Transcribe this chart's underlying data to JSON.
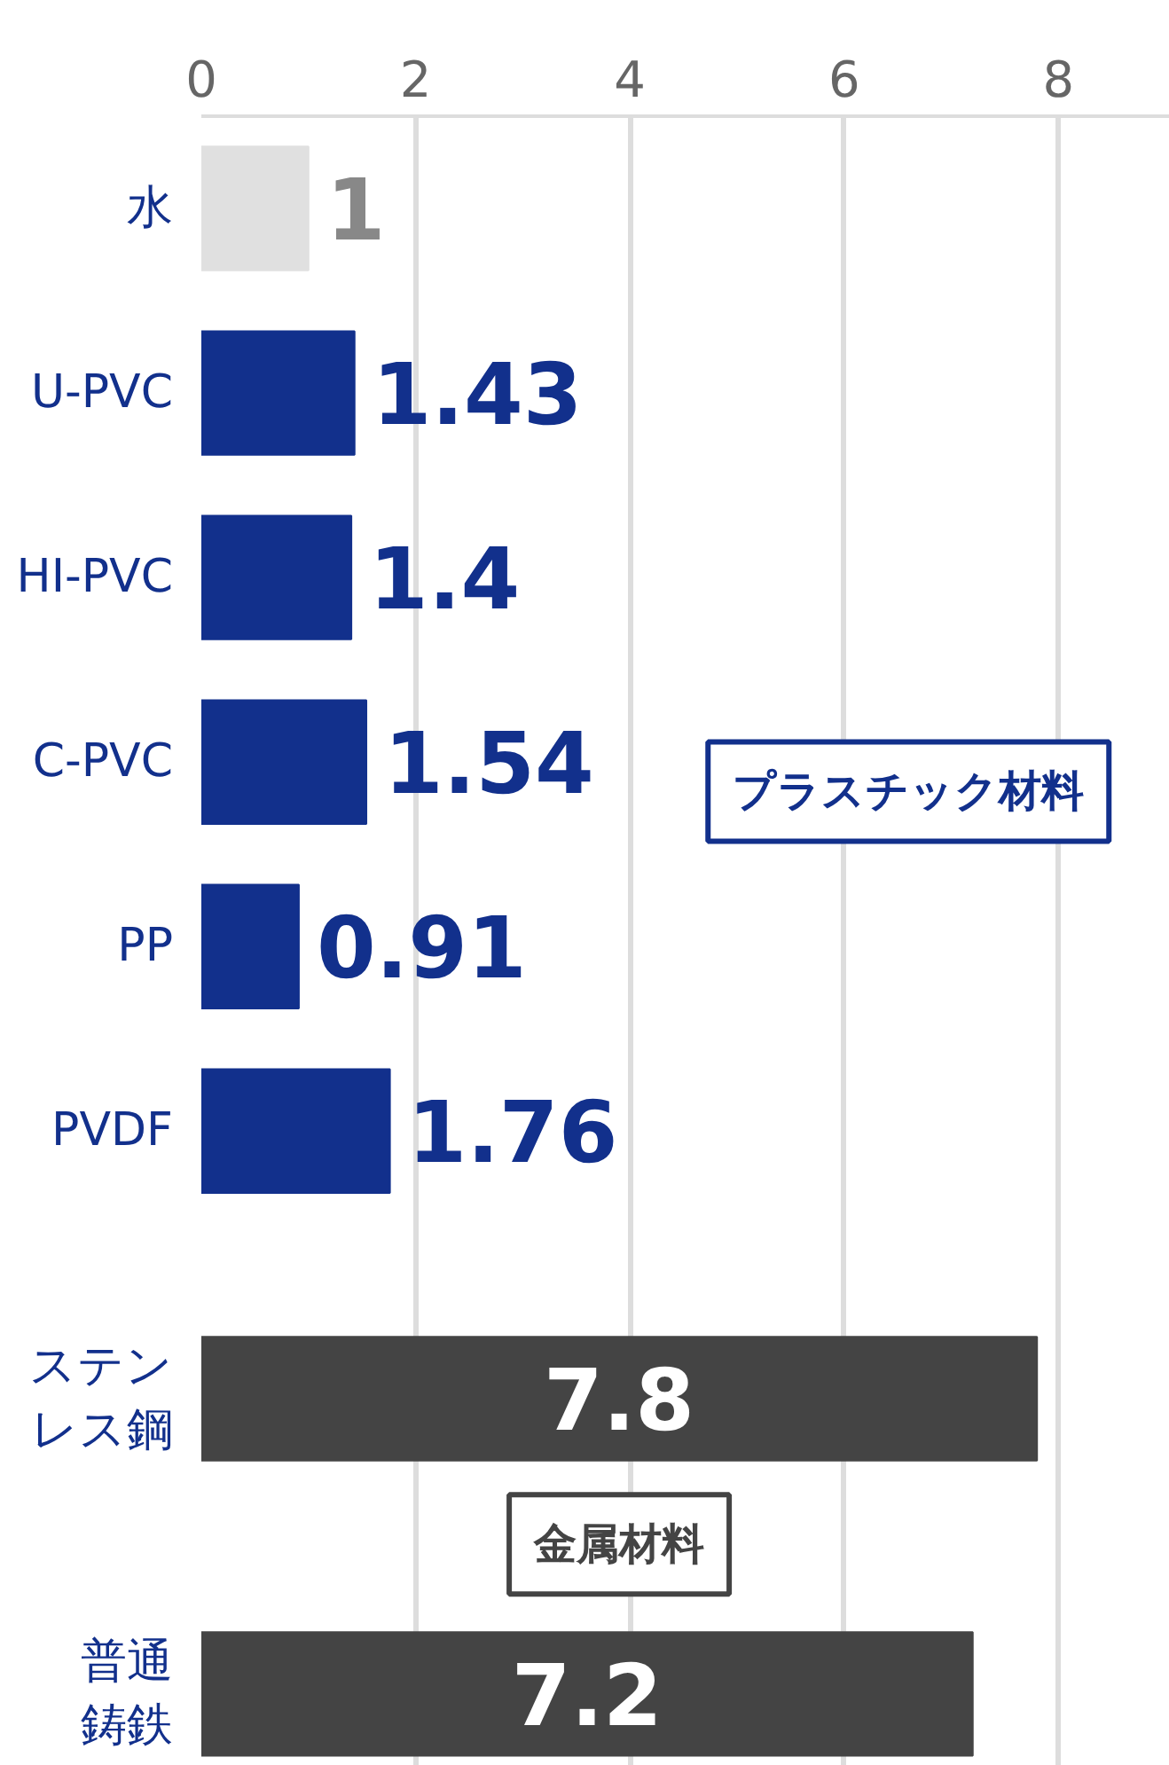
{
  "chart_data": {
    "type": "bar",
    "orientation": "horizontal",
    "categories": [
      "水",
      "U-PVC",
      "HI-PVC",
      "C-PVC",
      "PP",
      "PVDF",
      "ステンレス鋼",
      "普通鋳鉄"
    ],
    "values": [
      1,
      1.43,
      1.4,
      1.54,
      0.91,
      1.76,
      7.8,
      7.2
    ],
    "colors": [
      "#e0e0e0",
      "#12308c",
      "#12308c",
      "#12308c",
      "#12308c",
      "#12308c",
      "#444444",
      "#444444"
    ],
    "xlim": [
      0,
      9.04
    ],
    "xticks": [
      0,
      2,
      4,
      6,
      8
    ],
    "grid": "x",
    "data_labels": true,
    "annotations": [
      "プラスチック材料",
      "金属材料"
    ]
  }
}
